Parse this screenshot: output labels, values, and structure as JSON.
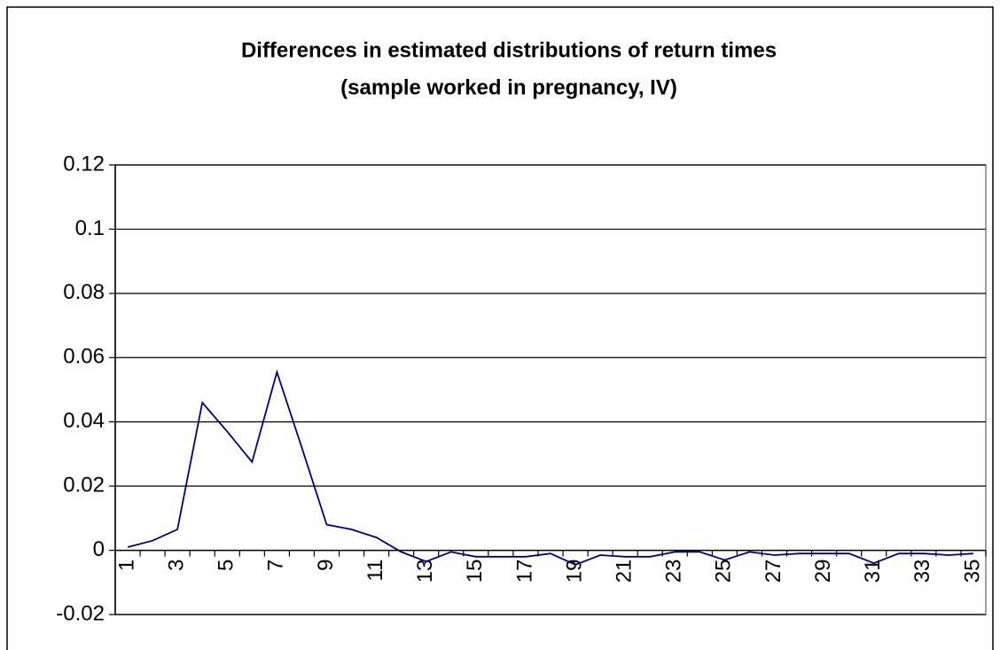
{
  "chart_data": {
    "type": "line",
    "title": [
      "Differences in estimated distributions of return times",
      "(sample worked in pregnancy, IV)"
    ],
    "categories": [
      "1",
      null,
      "3",
      null,
      "5",
      null,
      "7",
      null,
      "9",
      null,
      "11",
      null,
      "13",
      null,
      "15",
      null,
      "17",
      null,
      "19",
      null,
      "21",
      null,
      "23",
      null,
      "25",
      null,
      "27",
      null,
      "29",
      null,
      "31",
      null,
      "33",
      null,
      "35"
    ],
    "series": [
      {
        "color": "#000080",
        "values": [
          0.001,
          0.003,
          0.0065,
          0.046,
          0.037,
          0.0275,
          0.0555,
          0.032,
          0.008,
          0.0065,
          0.004,
          -0.0005,
          -0.0035,
          -0.0005,
          -0.002,
          -0.002,
          -0.002,
          -0.001,
          -0.0045,
          -0.0015,
          -0.002,
          -0.002,
          -0.0005,
          -0.0005,
          -0.003,
          -0.0005,
          -0.0015,
          -0.001,
          -0.001,
          -0.001,
          -0.004,
          -0.001,
          -0.001,
          -0.0015,
          -0.001
        ]
      }
    ],
    "ylim": [
      -0.02,
      0.12
    ],
    "yticks": [
      -0.02,
      0,
      0.02,
      0.04,
      0.06,
      0.08,
      0.1,
      0.12
    ],
    "grid": true
  }
}
